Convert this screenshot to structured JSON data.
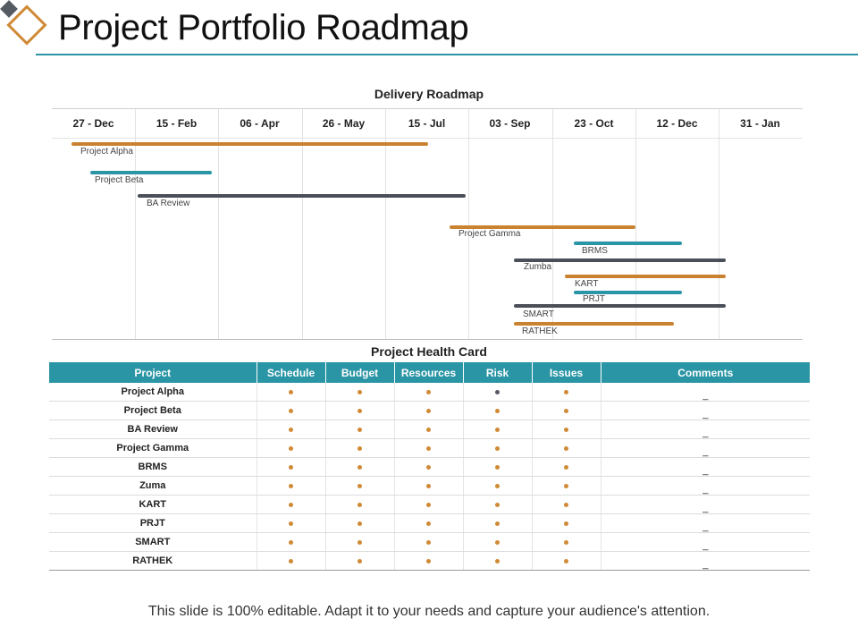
{
  "header": {
    "title": "Project Portfolio Roadmap"
  },
  "roadmap": {
    "title": "Delivery Roadmap",
    "dates": [
      "27 - Dec",
      "15 - Feb",
      "06 - Apr",
      "26 - May",
      "15 - Jul",
      "03 - Sep",
      "23 - Oct",
      "12 - Dec",
      "31 - Jan"
    ],
    "bars": [
      {
        "label": "Project Alpha",
        "color": "#c9822f"
      },
      {
        "label": "Project Beta",
        "color": "#2a95a5"
      },
      {
        "label": "BA Review",
        "color": "#4a4f58"
      },
      {
        "label": "Project Gamma",
        "color": "#c9822f"
      },
      {
        "label": "BRMS",
        "color": "#2a95a5"
      },
      {
        "label": "Zumba",
        "color": "#4a4f58"
      },
      {
        "label": "KART",
        "color": "#c9822f"
      },
      {
        "label": "PRJT",
        "color": "#2a95a5"
      },
      {
        "label": "SMART",
        "color": "#4a4f58"
      },
      {
        "label": "RATHEK",
        "color": "#c9822f"
      }
    ]
  },
  "health_card": {
    "title": "Project Health Card",
    "columns": [
      "Project",
      "Schedule",
      "Budget",
      "Resources",
      "Risk",
      "Issues",
      "Comments"
    ],
    "status_colors": {
      "ok": "#d08a35",
      "neutral": "#555a63"
    },
    "rows": [
      {
        "name": "Project Alpha",
        "status": [
          "ok",
          "ok",
          "ok",
          "neutral",
          "ok"
        ],
        "comment": "_"
      },
      {
        "name": "Project Beta",
        "status": [
          "ok",
          "ok",
          "ok",
          "ok",
          "ok"
        ],
        "comment": "_"
      },
      {
        "name": "BA Review",
        "status": [
          "ok",
          "ok",
          "ok",
          "ok",
          "ok"
        ],
        "comment": "_"
      },
      {
        "name": "Project Gamma",
        "status": [
          "ok",
          "ok",
          "ok",
          "ok",
          "ok"
        ],
        "comment": "_"
      },
      {
        "name": "BRMS",
        "status": [
          "ok",
          "ok",
          "ok",
          "ok",
          "ok"
        ],
        "comment": "_"
      },
      {
        "name": "Zuma",
        "status": [
          "ok",
          "ok",
          "ok",
          "ok",
          "ok"
        ],
        "comment": "_"
      },
      {
        "name": "KART",
        "status": [
          "ok",
          "ok",
          "ok",
          "ok",
          "ok"
        ],
        "comment": "_"
      },
      {
        "name": "PRJT",
        "status": [
          "ok",
          "ok",
          "ok",
          "ok",
          "ok"
        ],
        "comment": "_"
      },
      {
        "name": "SMART",
        "status": [
          "ok",
          "ok",
          "ok",
          "ok",
          "ok"
        ],
        "comment": "_"
      },
      {
        "name": "RATHEK",
        "status": [
          "ok",
          "ok",
          "ok",
          "ok",
          "ok"
        ],
        "comment": "_"
      }
    ]
  },
  "footer": {
    "text": "This slide is 100% editable. Adapt it to your needs and capture your audience's attention."
  }
}
